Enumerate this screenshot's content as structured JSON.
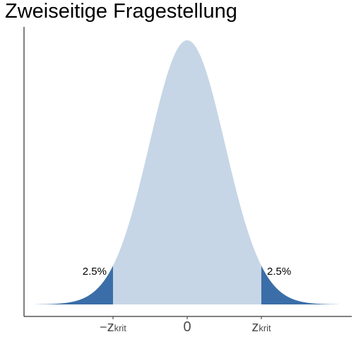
{
  "chart_data": {
    "type": "area",
    "title": "Zweiseitige Fragestellung",
    "distribution": "standard-normal",
    "xlim": [
      -4.0,
      4.3
    ],
    "z_critical": 1.96,
    "ticks": [
      {
        "value": -1.96,
        "prefix": "−",
        "base": "z",
        "sub": "krit"
      },
      {
        "value": 0,
        "prefix": "",
        "base": "0",
        "sub": ""
      },
      {
        "value": 1.96,
        "prefix": "",
        "base": "z",
        "sub": "krit"
      }
    ],
    "annotations": [
      {
        "side": "left",
        "text": "2.5%"
      },
      {
        "side": "right",
        "text": "2.5%"
      }
    ],
    "colors": {
      "body": "#c6d6e6",
      "tails": "#3b6ea8",
      "axis": "#000000"
    }
  }
}
